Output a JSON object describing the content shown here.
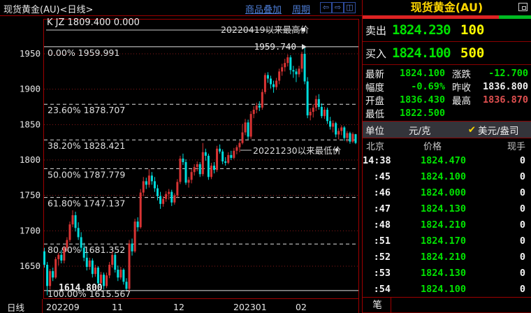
{
  "topbar": {
    "title": "现货黄金(AU)<日线>",
    "overlay_link": "商品叠加",
    "period_link": "周期",
    "icons": {
      "back": "⇦",
      "forward": "⇨",
      "split": "◫"
    }
  },
  "chart_data": {
    "type": "candlestick",
    "title": "现货黄金(AU) 日线",
    "indicator_label": "K JZ 1809.400 0.000",
    "period_label": "日线",
    "y_ticks": [
      1950,
      1900,
      1850,
      1800,
      1750,
      1700,
      1650
    ],
    "y_range": [
      1604,
      1998
    ],
    "x_ticks": [
      {
        "label": "202209",
        "x": 66
      },
      {
        "label": "11",
        "x": 160
      },
      {
        "label": "12",
        "x": 248
      },
      {
        "label": "202301",
        "x": 334
      },
      {
        "label": "02",
        "x": 423
      }
    ],
    "fib_levels": [
      {
        "pct": "0.00%",
        "value": "1959.991",
        "price": 1959.991,
        "style": "solid"
      },
      {
        "pct": "23.60%",
        "value": "1878.707",
        "price": 1878.707,
        "style": "dashed"
      },
      {
        "pct": "38.20%",
        "value": "1828.421",
        "price": 1828.421,
        "style": "dashed"
      },
      {
        "pct": "50.00%",
        "value": "1787.779",
        "price": 1787.779,
        "style": "dashed"
      },
      {
        "pct": "61.80%",
        "value": "1747.137",
        "price": 1747.137,
        "style": "dashed"
      },
      {
        "pct": "80.90%",
        "value": "1681.352",
        "price": 1681.352,
        "style": "dashed"
      },
      {
        "pct": "100.00%",
        "value": "1615.567",
        "price": 1615.567,
        "style": "solid"
      }
    ],
    "annotations": {
      "high_line_text": "20220419以来最高价",
      "high_marker": "1959.740",
      "low_line_text": "20221230以来最低价",
      "low_marker": "1614.800"
    },
    "colors": {
      "up": "#d83434",
      "down": "#00dcdc",
      "grid": "#8b1a1a",
      "border": "#a00000",
      "fib": "#e0e0e0"
    },
    "candles": [
      [
        1671,
        1676,
        1648,
        1652
      ],
      [
        1652,
        1656,
        1609,
        1622
      ],
      [
        1622,
        1646,
        1617,
        1643
      ],
      [
        1643,
        1648,
        1629,
        1634
      ],
      [
        1634,
        1663,
        1632,
        1660
      ],
      [
        1660,
        1669,
        1651,
        1666
      ],
      [
        1666,
        1673,
        1654,
        1658
      ],
      [
        1658,
        1679,
        1654,
        1676
      ],
      [
        1676,
        1691,
        1671,
        1687
      ],
      [
        1687,
        1713,
        1684,
        1709
      ],
      [
        1709,
        1729,
        1705,
        1722
      ],
      [
        1722,
        1727,
        1699,
        1704
      ],
      [
        1704,
        1712,
        1687,
        1691
      ],
      [
        1691,
        1698,
        1671,
        1676
      ],
      [
        1676,
        1683,
        1657,
        1662
      ],
      [
        1662,
        1670,
        1644,
        1649
      ],
      [
        1649,
        1662,
        1645,
        1658
      ],
      [
        1658,
        1661,
        1634,
        1639
      ],
      [
        1639,
        1652,
        1635,
        1648
      ],
      [
        1648,
        1650,
        1621,
        1626
      ],
      [
        1626,
        1642,
        1621,
        1638
      ],
      [
        1638,
        1641,
        1617,
        1622
      ],
      [
        1622,
        1641,
        1619,
        1637
      ],
      [
        1637,
        1656,
        1633,
        1652
      ],
      [
        1652,
        1671,
        1648,
        1666
      ],
      [
        1666,
        1669,
        1641,
        1645
      ],
      [
        1645,
        1651,
        1629,
        1634
      ],
      [
        1634,
        1649,
        1631,
        1645
      ],
      [
        1645,
        1647,
        1624,
        1628
      ],
      [
        1628,
        1633,
        1616,
        1618
      ],
      [
        1618,
        1687,
        1615,
        1682
      ],
      [
        1682,
        1689,
        1665,
        1671
      ],
      [
        1671,
        1717,
        1669,
        1713
      ],
      [
        1713,
        1719,
        1699,
        1705
      ],
      [
        1705,
        1759,
        1703,
        1754
      ],
      [
        1754,
        1776,
        1749,
        1770
      ],
      [
        1770,
        1775,
        1759,
        1765
      ],
      [
        1765,
        1787,
        1761,
        1778
      ],
      [
        1778,
        1783,
        1765,
        1770
      ],
      [
        1770,
        1776,
        1755,
        1760
      ],
      [
        1760,
        1765,
        1743,
        1749
      ],
      [
        1749,
        1755,
        1731,
        1738
      ],
      [
        1738,
        1749,
        1734,
        1745
      ],
      [
        1745,
        1756,
        1741,
        1752
      ],
      [
        1752,
        1759,
        1744,
        1755
      ],
      [
        1755,
        1758,
        1735,
        1740
      ],
      [
        1740,
        1753,
        1737,
        1750
      ],
      [
        1750,
        1773,
        1747,
        1769
      ],
      [
        1769,
        1806,
        1766,
        1802
      ],
      [
        1802,
        1809,
        1793,
        1797
      ],
      [
        1797,
        1801,
        1765,
        1768
      ],
      [
        1768,
        1776,
        1761,
        1772
      ],
      [
        1772,
        1787,
        1767,
        1783
      ],
      [
        1783,
        1794,
        1778,
        1790
      ],
      [
        1790,
        1798,
        1784,
        1794
      ],
      [
        1794,
        1797,
        1776,
        1780
      ],
      [
        1780,
        1824,
        1777,
        1811
      ],
      [
        1811,
        1816,
        1799,
        1806
      ],
      [
        1806,
        1809,
        1772,
        1776
      ],
      [
        1776,
        1796,
        1773,
        1792
      ],
      [
        1792,
        1797,
        1781,
        1786
      ],
      [
        1786,
        1820,
        1783,
        1816
      ],
      [
        1816,
        1822,
        1809,
        1812
      ],
      [
        1812,
        1815,
        1794,
        1798
      ],
      [
        1798,
        1804,
        1792,
        1796
      ],
      [
        1796,
        1811,
        1794,
        1807
      ],
      [
        1807,
        1813,
        1800,
        1803
      ],
      [
        1803,
        1817,
        1801,
        1813
      ],
      [
        1813,
        1821,
        1808,
        1818
      ],
      [
        1818,
        1827,
        1811,
        1824
      ],
      [
        1824,
        1851,
        1822,
        1839
      ],
      [
        1839,
        1858,
        1835,
        1853
      ],
      [
        1853,
        1857,
        1829,
        1833
      ],
      [
        1833,
        1869,
        1830,
        1865
      ],
      [
        1865,
        1876,
        1859,
        1871
      ],
      [
        1871,
        1881,
        1866,
        1877
      ],
      [
        1877,
        1883,
        1869,
        1874
      ],
      [
        1874,
        1900,
        1871,
        1896
      ],
      [
        1896,
        1923,
        1893,
        1920
      ],
      [
        1920,
        1924,
        1909,
        1915
      ],
      [
        1915,
        1919,
        1901,
        1907
      ],
      [
        1907,
        1912,
        1895,
        1903
      ],
      [
        1903,
        1916,
        1899,
        1912
      ],
      [
        1912,
        1929,
        1907,
        1925
      ],
      [
        1925,
        1936,
        1919,
        1931
      ],
      [
        1931,
        1943,
        1925,
        1937
      ],
      [
        1937,
        1949,
        1932,
        1945
      ],
      [
        1945,
        1948,
        1921,
        1927
      ],
      [
        1927,
        1933,
        1916,
        1925
      ],
      [
        1925,
        1929,
        1910,
        1921
      ],
      [
        1921,
        1933,
        1917,
        1929
      ],
      [
        1929,
        1953,
        1924,
        1950
      ],
      [
        1950,
        1959.74,
        1907,
        1911
      ],
      [
        1911,
        1917,
        1859,
        1863
      ],
      [
        1863,
        1873,
        1856,
        1868
      ],
      [
        1868,
        1879,
        1860,
        1874
      ],
      [
        1874,
        1891,
        1869,
        1886
      ],
      [
        1886,
        1893,
        1871,
        1875
      ],
      [
        1875,
        1880,
        1859,
        1862
      ],
      [
        1862,
        1875,
        1858,
        1871
      ],
      [
        1871,
        1874,
        1851,
        1855
      ],
      [
        1855,
        1861,
        1843,
        1847
      ],
      [
        1847,
        1856,
        1839,
        1852
      ],
      [
        1852,
        1854,
        1832,
        1836
      ],
      [
        1836,
        1845,
        1829,
        1841
      ],
      [
        1841,
        1849,
        1835,
        1846
      ],
      [
        1846,
        1848,
        1827,
        1831
      ],
      [
        1831,
        1841,
        1825,
        1838
      ],
      [
        1838,
        1840,
        1823,
        1826
      ],
      [
        1826,
        1839,
        1824,
        1836.8
      ],
      [
        1836.4,
        1836.9,
        1822.5,
        1824.1
      ]
    ]
  },
  "sidebar": {
    "title": "现货黄金(AU)",
    "quotes": {
      "sell_label": "卖出",
      "sell_price": "1824.230",
      "sell_qty": "100",
      "buy_label": "买入",
      "buy_price": "1824.100",
      "buy_qty": "500"
    },
    "stats": {
      "latest_label": "最新",
      "latest": "1824.100",
      "change_label": "涨跌",
      "change": "-12.700",
      "range_label": "幅度",
      "range": "-0.69%",
      "prev_close_label": "昨收",
      "prev_close": "1836.800",
      "open_label": "开盘",
      "open": "1836.430",
      "high_label": "最高",
      "high": "1836.870",
      "low_label": "最低",
      "low": "1822.500"
    },
    "unit": {
      "label": "单位",
      "cny": "元/克",
      "check": "✔",
      "usd": "美元/盎司"
    },
    "tape": {
      "headers": [
        "北京",
        "价格",
        "现手"
      ],
      "rows": [
        [
          "14:38",
          "1824.470",
          "0"
        ],
        [
          ":45",
          "1824.100",
          "0"
        ],
        [
          ":46",
          "1824.000",
          "0"
        ],
        [
          ":47",
          "1824.130",
          "0"
        ],
        [
          ":48",
          "1824.210",
          "0"
        ],
        [
          ":51",
          "1824.170",
          "0"
        ],
        [
          ":52",
          "1824.210",
          "0"
        ],
        [
          ":53",
          "1824.130",
          "0"
        ],
        [
          ":54",
          "1824.100",
          "0"
        ]
      ]
    },
    "bottom_tab": "笔"
  }
}
